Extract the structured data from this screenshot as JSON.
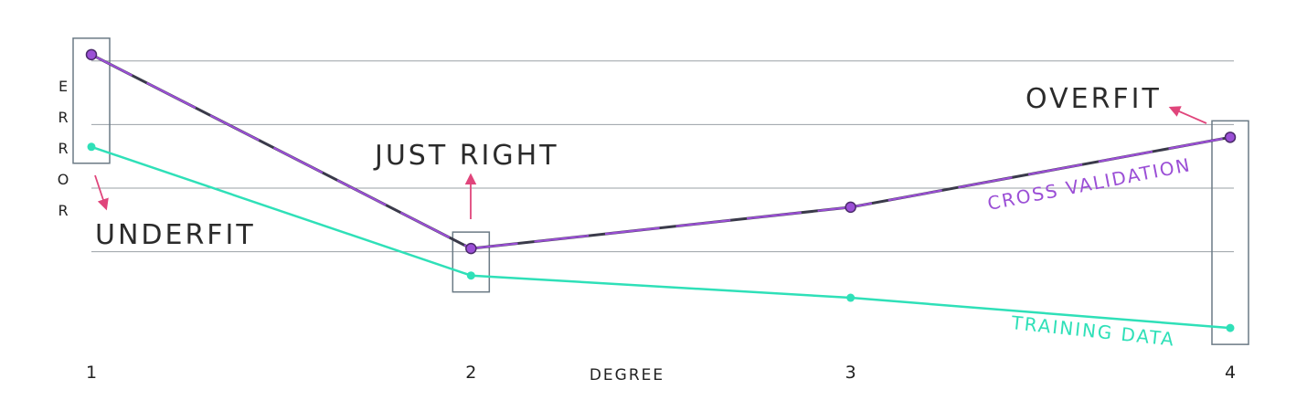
{
  "chart_data": {
    "type": "line",
    "xlabel": "DEGREE",
    "ylabel_letters": [
      "E",
      "R",
      "R",
      "O",
      "R"
    ],
    "x": [
      1,
      2,
      3,
      4
    ],
    "x_tick_labels": [
      "1",
      "2",
      "3",
      "4"
    ],
    "ylim": [
      0,
      10
    ],
    "grid": true,
    "series": [
      {
        "name": "CROSS VALIDATION",
        "color": "#9b4fd6",
        "values": [
          9.2,
          3.1,
          4.4,
          6.6
        ]
      },
      {
        "name": "TRAINING DATA",
        "color": "#2fe0b8",
        "values": [
          6.3,
          2.25,
          1.55,
          0.6
        ]
      }
    ],
    "annotations": [
      {
        "text": "UNDERFIT",
        "x": 1
      },
      {
        "text": "JUST RIGHT",
        "x": 2
      },
      {
        "text": "OVERFIT",
        "x": 4
      }
    ]
  },
  "colors": {
    "arrow": "#e0457b",
    "cross_line_dark": "#3a3a4a"
  }
}
